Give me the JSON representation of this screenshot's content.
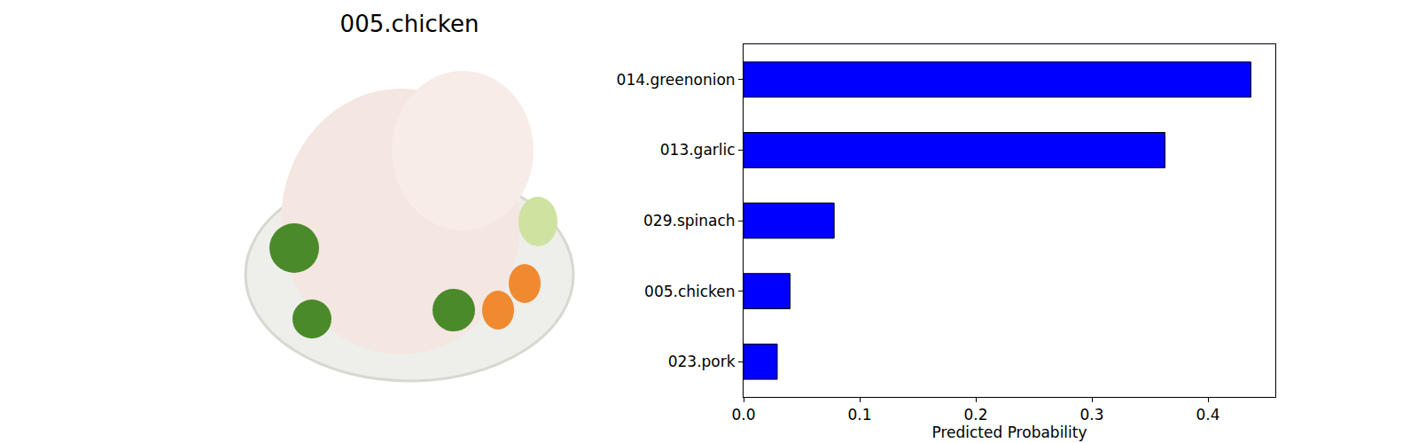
{
  "image": {
    "title": "005.chicken"
  },
  "chart_data": {
    "type": "bar",
    "orientation": "horizontal",
    "categories": [
      "014.greenonion",
      "013.garlic",
      "029.spinach",
      "005.chicken",
      "023.pork"
    ],
    "values": [
      0.437,
      0.363,
      0.078,
      0.04,
      0.029
    ],
    "color": "#0000ff",
    "xlabel": "Predicted Probability",
    "xlim": [
      0,
      0.458
    ],
    "xticks": [
      {
        "value": 0,
        "label": "0.0"
      },
      0.1,
      0.2,
      0.3,
      0.4
    ],
    "grid": false
  }
}
